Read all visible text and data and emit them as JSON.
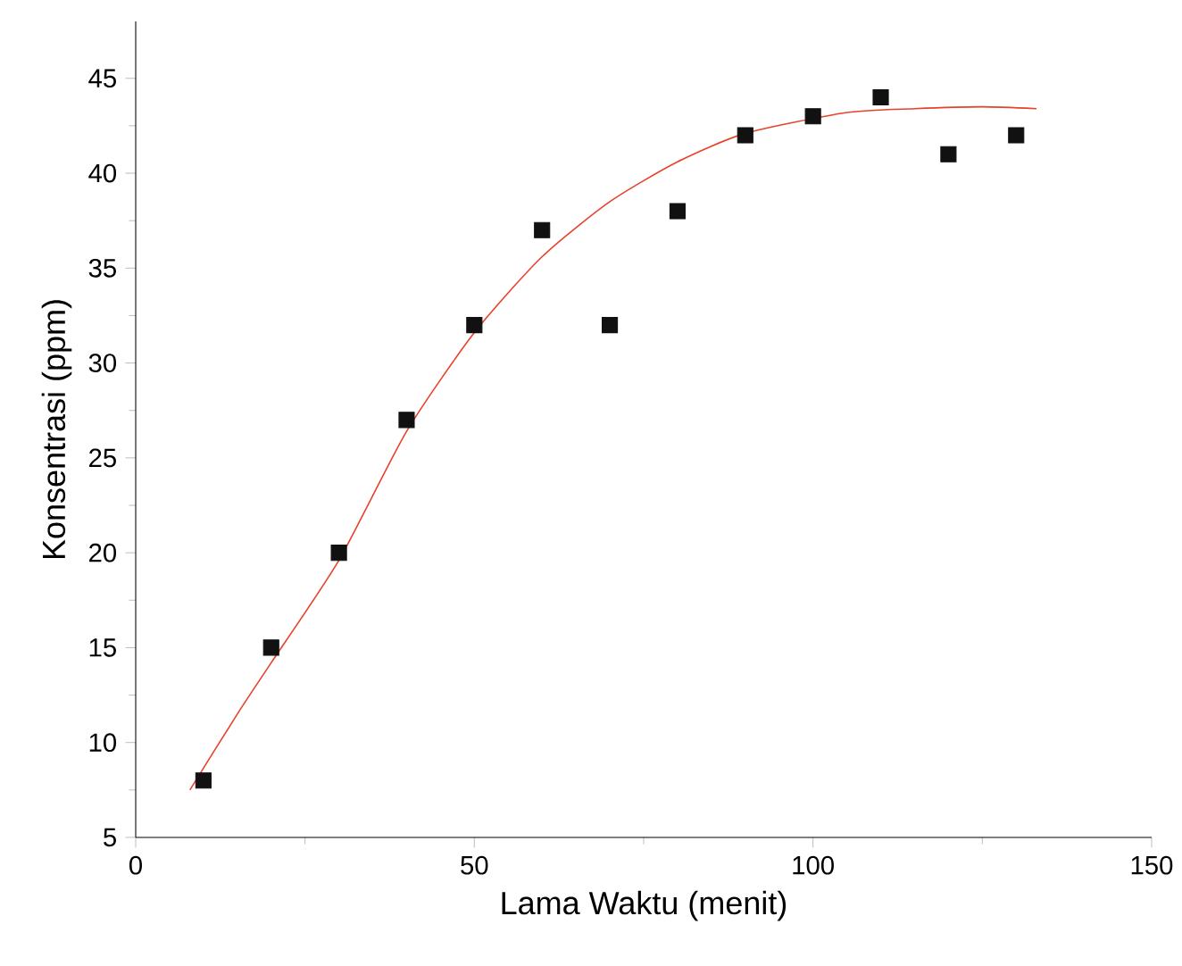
{
  "chart_data": {
    "type": "scatter",
    "xlabel": "Lama Waktu (menit)",
    "ylabel": "Konsentrasi (ppm)",
    "xlim": [
      0,
      150
    ],
    "xticks": [
      0,
      50,
      100,
      150
    ],
    "ylim": [
      5,
      48
    ],
    "yticks": [
      5,
      10,
      15,
      20,
      25,
      30,
      35,
      40,
      45
    ],
    "marker": "square",
    "grid": false,
    "series": [
      {
        "color": "#111111",
        "x": [
          10,
          20,
          30,
          40,
          50,
          60,
          70,
          80,
          90,
          100,
          110,
          120,
          130
        ],
        "values": [
          8,
          15,
          20,
          27,
          32,
          37,
          32,
          38,
          42,
          43,
          44,
          41,
          42
        ]
      },
      {
        "type": "line",
        "marker": "none",
        "color": "#e8412c",
        "x": [
          8,
          15,
          20,
          30,
          40,
          50,
          60,
          70,
          80,
          90,
          105,
          115,
          125,
          133
        ],
        "values": [
          7.5,
          11.5,
          14.2,
          19.6,
          26.4,
          31.6,
          35.6,
          38.5,
          40.6,
          42.1,
          43.2,
          43.4,
          43.5,
          43.4
        ]
      }
    ]
  }
}
